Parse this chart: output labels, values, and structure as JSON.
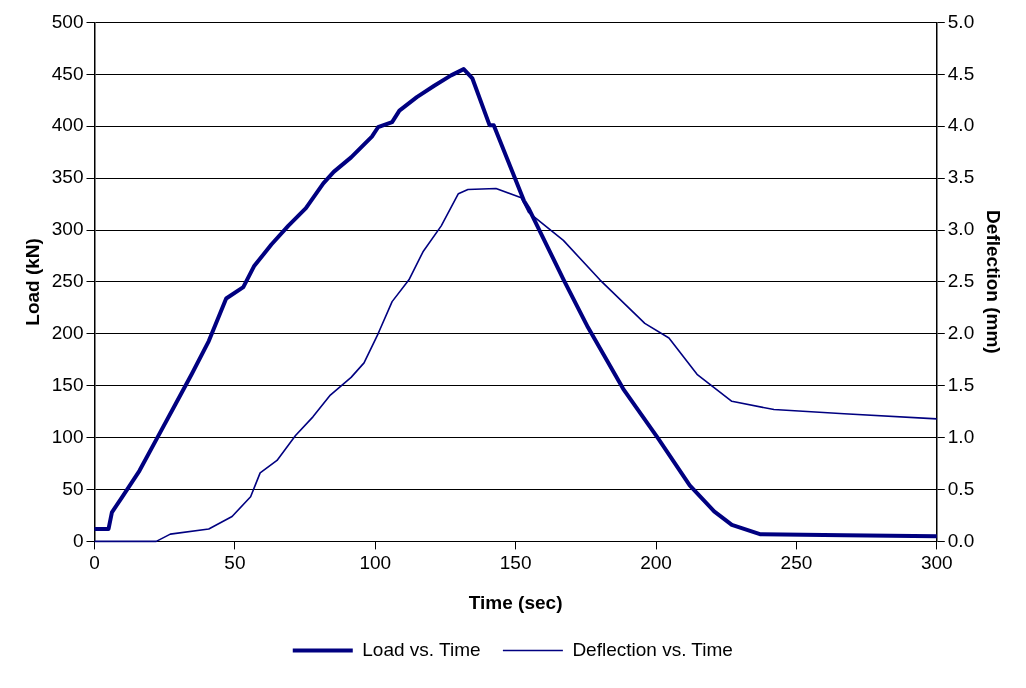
{
  "chart_data": {
    "type": "line",
    "xlabel": "Time (sec)",
    "ylabel": "Load (kN)",
    "y2label": "Deflection (mm)",
    "xlim": [
      0,
      300
    ],
    "xticks": [
      0,
      50,
      100,
      150,
      200,
      250,
      300
    ],
    "ylim": [
      0,
      500
    ],
    "yticks": [
      0,
      50,
      100,
      150,
      200,
      250,
      300,
      350,
      400,
      450,
      500
    ],
    "y2lim": [
      0,
      5
    ],
    "y2ticks": [
      {
        "value": 0,
        "label": "0.0"
      },
      {
        "value": 0.5,
        "label": "0.5"
      },
      {
        "value": 1,
        "label": "1.0"
      },
      {
        "value": 1.5,
        "label": "1.5"
      },
      {
        "value": 2,
        "label": "2.0"
      },
      {
        "value": 2.5,
        "label": "2.5"
      },
      {
        "value": 3,
        "label": "3.0"
      },
      {
        "value": 3.5,
        "label": "3.5"
      },
      {
        "value": 4,
        "label": "4.0"
      },
      {
        "value": 4.5,
        "label": "4.5"
      },
      {
        "value": 5,
        "label": "5.0"
      }
    ],
    "grid": "y",
    "legend": "bottom",
    "marker": "none",
    "series": [
      {
        "name": "Load vs. Time",
        "color": "#000080",
        "x": [
          0,
          5,
          6.2,
          9.9,
          16,
          22.2,
          28.4,
          34.6,
          40.7,
          46.9,
          53,
          56.8,
          63,
          69,
          75.3,
          81.5,
          85.2,
          91.4,
          98.8,
          101,
          106,
          108.6,
          114.8,
          121,
          127,
          131.5,
          134.6,
          140.7,
          142.2,
          153,
          154.6,
          167.1,
          175.8,
          188.3,
          200.8,
          212,
          220.7,
          227,
          237,
          267,
          300
        ],
        "values": [
          12,
          12,
          28,
          43,
          68,
          99,
          130,
          161,
          193,
          234,
          245,
          265,
          286,
          304,
          321,
          345,
          356,
          370,
          390,
          399,
          404,
          415,
          428,
          439,
          449,
          455,
          446,
          401,
          401,
          328,
          321,
          252,
          206,
          147,
          99,
          54,
          29,
          16,
          7,
          6,
          5
        ]
      },
      {
        "name": "Deflection vs. Time",
        "color": "#000080",
        "axis": "y2",
        "x": [
          0,
          22,
          27,
          40.7,
          49,
          55.6,
          59,
          65,
          71.6,
          77.8,
          84,
          91.4,
          96,
          101,
          106,
          112,
          117,
          123.5,
          129.6,
          133,
          143,
          152,
          154.6,
          167,
          180,
          196,
          204.6,
          214.6,
          227,
          242,
          267,
          300
        ],
        "values": [
          0,
          0,
          0.07,
          0.12,
          0.24,
          0.43,
          0.66,
          0.78,
          1.02,
          1.2,
          1.41,
          1.58,
          1.72,
          2.0,
          2.31,
          2.52,
          2.79,
          3.04,
          3.35,
          3.39,
          3.4,
          3.31,
          3.17,
          2.9,
          2.52,
          2.1,
          1.96,
          1.61,
          1.35,
          1.27,
          1.23,
          1.18
        ]
      }
    ]
  }
}
